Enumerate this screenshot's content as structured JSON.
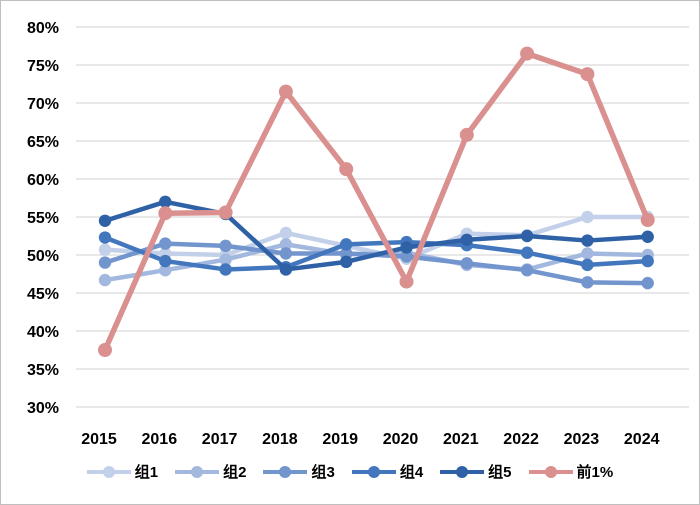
{
  "chart_data": {
    "type": "line",
    "categories": [
      "2015",
      "2016",
      "2017",
      "2018",
      "2019",
      "2020",
      "2021",
      "2022",
      "2023",
      "2024"
    ],
    "series": [
      {
        "name": "组1",
        "color": "#C3D0E9",
        "values": [
          50.7,
          50.2,
          50.0,
          52.9,
          51.2,
          49.5,
          52.8,
          52.6,
          55.0,
          55.0
        ]
      },
      {
        "name": "组2",
        "color": "#A3B8DF",
        "values": [
          46.7,
          48.0,
          49.4,
          51.4,
          50.1,
          50.3,
          48.7,
          48.1,
          50.2,
          50.0
        ]
      },
      {
        "name": "组3",
        "color": "#7295CE",
        "values": [
          49.0,
          51.5,
          51.2,
          50.2,
          50.2,
          49.8,
          48.9,
          48.0,
          46.4,
          46.3
        ]
      },
      {
        "name": "组4",
        "color": "#4377BD",
        "values": [
          52.3,
          49.2,
          48.1,
          48.4,
          51.4,
          51.7,
          51.3,
          50.3,
          48.7,
          49.2
        ]
      },
      {
        "name": "组5",
        "color": "#2F61A6",
        "values": [
          54.5,
          57.0,
          55.4,
          48.1,
          49.1,
          51.0,
          52.0,
          52.5,
          51.9,
          52.4
        ]
      },
      {
        "name": "前1%",
        "color": "#D9908F",
        "values": [
          37.5,
          55.5,
          55.6,
          71.5,
          61.3,
          46.5,
          65.8,
          76.5,
          73.8,
          54.6
        ]
      }
    ],
    "title": "",
    "xlabel": "",
    "ylabel": "",
    "ylim": [
      30,
      80
    ],
    "y_tick_values": [
      30,
      35,
      40,
      45,
      50,
      55,
      60,
      65,
      70,
      75,
      80
    ],
    "y_tick_labels": [
      "30%",
      "35%",
      "40%",
      "45%",
      "50%",
      "55%",
      "60%",
      "65%",
      "70%",
      "75%",
      "80%"
    ],
    "grid": "horizontal",
    "gridline_color": "#D9D9D9",
    "border_color": "#BFBFBF",
    "legend_position": "bottom"
  }
}
